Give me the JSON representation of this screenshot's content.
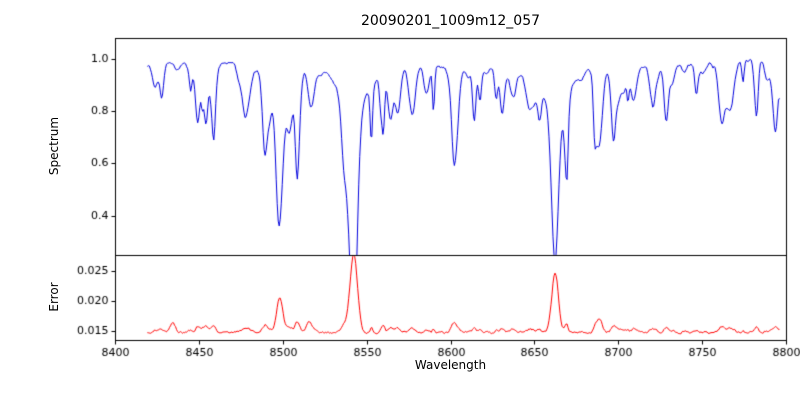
{
  "colors": {
    "background": "#ffffff",
    "axis": "#000000",
    "tick_text": "#000000"
  },
  "chart_data": [
    {
      "type": "line",
      "panel": "spectrum",
      "title": "20090201_1009m12_057",
      "ylabel": "Spectrum",
      "line_color": "#0000dd",
      "x_range": [
        8400,
        8800
      ],
      "data_x_range": [
        8419,
        8796
      ],
      "ylim": [
        0.25,
        1.08
      ],
      "ytick_labels": [
        "0.4",
        "0.6",
        "0.8",
        "1.0"
      ],
      "continuum": 0.98,
      "noise_amplitude": 0.009,
      "weak_line_count": 115,
      "noise_seed": 20090201,
      "absorption_lines": [
        {
          "center": 8498.0,
          "core_depth": 0.46,
          "core_width": 2.0,
          "wing_depth": 0.1,
          "wing_width": 7
        },
        {
          "center": 8542.1,
          "core_depth": 0.55,
          "core_width": 2.3,
          "wing_depth": 0.17,
          "wing_width": 10
        },
        {
          "center": 8662.1,
          "core_depth": 0.54,
          "core_width": 2.2,
          "wing_depth": 0.14,
          "wing_width": 9
        },
        {
          "center": 8688.6,
          "core_depth": 0.28,
          "core_width": 1.8,
          "wing_depth": 0.0,
          "wing_width": 1
        }
      ]
    },
    {
      "type": "line",
      "panel": "error",
      "ylabel": "Error",
      "xlabel": "Wavelength",
      "line_color": "#ff0000",
      "x_range": [
        8400,
        8800
      ],
      "ylim": [
        0.0135,
        0.0276
      ],
      "ytick_labels": [
        "0.015",
        "0.020",
        "0.025"
      ],
      "xtick_labels": [
        "8400",
        "8450",
        "8500",
        "8550",
        "8600",
        "8650",
        "8700",
        "8750",
        "8800"
      ],
      "baseline": 0.0148,
      "noise_amplitude": 0.0003,
      "peaks": [
        {
          "center": 8434.0,
          "height": 0.0016,
          "width": 1.6
        },
        {
          "center": 8498.0,
          "height": 0.0056,
          "width": 1.8
        },
        {
          "center": 8515.0,
          "height": 0.0012,
          "width": 1.5
        },
        {
          "center": 8542.1,
          "height": 0.0118,
          "width": 2.2
        },
        {
          "center": 8662.1,
          "height": 0.0096,
          "width": 2.0
        },
        {
          "center": 8688.6,
          "height": 0.0022,
          "width": 1.5
        }
      ]
    }
  ]
}
